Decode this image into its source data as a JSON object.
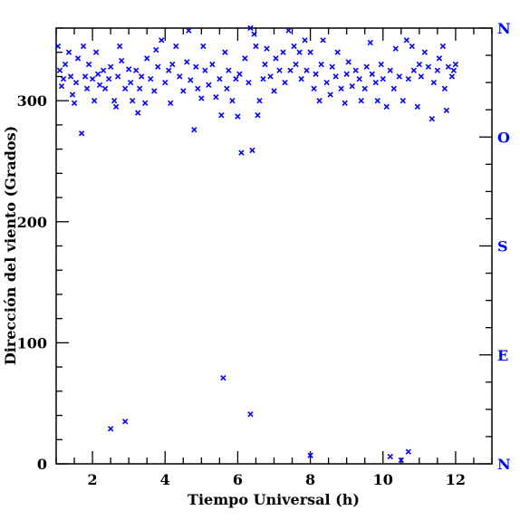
{
  "chart_data": {
    "type": "scatter",
    "xlabel": "Tiempo Universal (h)",
    "ylabel": "Dirección del viento (Grados)",
    "xlim": [
      1,
      13
    ],
    "ylim": [
      0,
      360
    ],
    "x_ticks": [
      2,
      4,
      6,
      8,
      10,
      12
    ],
    "x_tick_labels": [
      "2",
      "4",
      "6",
      "8",
      "10",
      "12"
    ],
    "y_ticks": [
      0,
      100,
      200,
      300
    ],
    "y_tick_labels": [
      "0",
      "100",
      "200",
      "300"
    ],
    "right_axis_labels": [
      {
        "value": 0,
        "label": "N"
      },
      {
        "value": 90,
        "label": "E"
      },
      {
        "value": 180,
        "label": "S"
      },
      {
        "value": 270,
        "label": "O"
      },
      {
        "value": 360,
        "label": "N"
      }
    ],
    "marker": "x",
    "color": "#0000ff",
    "points": [
      [
        1.05,
        345
      ],
      [
        1.1,
        325
      ],
      [
        1.15,
        312
      ],
      [
        1.2,
        318
      ],
      [
        1.25,
        330
      ],
      [
        1.35,
        340
      ],
      [
        1.4,
        320
      ],
      [
        1.45,
        305
      ],
      [
        1.5,
        298
      ],
      [
        1.55,
        315
      ],
      [
        1.6,
        335
      ],
      [
        1.7,
        273
      ],
      [
        1.75,
        345
      ],
      [
        1.8,
        320
      ],
      [
        1.85,
        310
      ],
      [
        1.9,
        330
      ],
      [
        2.0,
        318
      ],
      [
        2.05,
        300
      ],
      [
        2.1,
        340
      ],
      [
        2.15,
        322
      ],
      [
        2.2,
        313
      ],
      [
        2.3,
        325
      ],
      [
        2.35,
        310
      ],
      [
        2.45,
        318
      ],
      [
        2.5,
        328
      ],
      [
        2.6,
        300
      ],
      [
        2.65,
        295
      ],
      [
        2.7,
        320
      ],
      [
        2.75,
        345
      ],
      [
        2.8,
        333
      ],
      [
        2.9,
        310
      ],
      [
        3.0,
        326
      ],
      [
        3.05,
        315
      ],
      [
        3.1,
        300
      ],
      [
        3.2,
        325
      ],
      [
        3.25,
        290
      ],
      [
        3.3,
        310
      ],
      [
        3.35,
        320
      ],
      [
        3.45,
        298
      ],
      [
        3.5,
        335
      ],
      [
        3.6,
        318
      ],
      [
        3.7,
        308
      ],
      [
        3.75,
        342
      ],
      [
        3.8,
        328
      ],
      [
        3.9,
        350
      ],
      [
        4.0,
        315
      ],
      [
        4.1,
        325
      ],
      [
        4.15,
        298
      ],
      [
        4.2,
        330
      ],
      [
        4.3,
        345
      ],
      [
        4.4,
        320
      ],
      [
        4.5,
        308
      ],
      [
        4.6,
        332
      ],
      [
        4.65,
        358
      ],
      [
        4.7,
        317
      ],
      [
        4.8,
        276
      ],
      [
        4.85,
        328
      ],
      [
        4.9,
        310
      ],
      [
        5.0,
        302
      ],
      [
        5.05,
        345
      ],
      [
        5.1,
        325
      ],
      [
        5.2,
        313
      ],
      [
        5.3,
        330
      ],
      [
        5.4,
        303
      ],
      [
        5.5,
        318
      ],
      [
        5.55,
        288
      ],
      [
        5.65,
        340
      ],
      [
        5.7,
        310
      ],
      [
        5.75,
        325
      ],
      [
        5.85,
        300
      ],
      [
        5.95,
        318
      ],
      [
        6.0,
        287
      ],
      [
        6.05,
        322
      ],
      [
        6.1,
        257
      ],
      [
        6.2,
        335
      ],
      [
        6.3,
        315
      ],
      [
        6.35,
        360
      ],
      [
        6.4,
        259
      ],
      [
        6.45,
        355
      ],
      [
        6.5,
        345
      ],
      [
        6.55,
        288
      ],
      [
        6.6,
        300
      ],
      [
        6.7,
        318
      ],
      [
        6.75,
        330
      ],
      [
        6.8,
        343
      ],
      [
        6.9,
        320
      ],
      [
        7.0,
        308
      ],
      [
        7.05,
        335
      ],
      [
        7.15,
        325
      ],
      [
        7.25,
        340
      ],
      [
        7.3,
        315
      ],
      [
        7.4,
        358
      ],
      [
        7.45,
        325
      ],
      [
        7.55,
        345
      ],
      [
        7.6,
        330
      ],
      [
        7.7,
        340
      ],
      [
        7.75,
        318
      ],
      [
        7.85,
        350
      ],
      [
        7.9,
        325
      ],
      [
        8.0,
        340
      ],
      [
        8.1,
        310
      ],
      [
        8.15,
        322
      ],
      [
        8.25,
        300
      ],
      [
        8.3,
        330
      ],
      [
        8.35,
        350
      ],
      [
        8.45,
        315
      ],
      [
        8.55,
        305
      ],
      [
        8.6,
        328
      ],
      [
        8.7,
        320
      ],
      [
        8.75,
        340
      ],
      [
        8.85,
        310
      ],
      [
        8.95,
        298
      ],
      [
        9.0,
        322
      ],
      [
        9.05,
        332
      ],
      [
        9.15,
        312
      ],
      [
        9.25,
        325
      ],
      [
        9.35,
        318
      ],
      [
        9.4,
        300
      ],
      [
        9.5,
        310
      ],
      [
        9.55,
        328
      ],
      [
        9.65,
        348
      ],
      [
        9.7,
        322
      ],
      [
        9.8,
        315
      ],
      [
        9.85,
        300
      ],
      [
        9.95,
        330
      ],
      [
        10.0,
        318
      ],
      [
        10.1,
        295
      ],
      [
        10.2,
        325
      ],
      [
        10.3,
        310
      ],
      [
        10.35,
        343
      ],
      [
        10.45,
        320
      ],
      [
        10.55,
        300
      ],
      [
        10.65,
        350
      ],
      [
        10.7,
        318
      ],
      [
        10.8,
        345
      ],
      [
        10.85,
        325
      ],
      [
        10.95,
        295
      ],
      [
        11.0,
        330
      ],
      [
        11.05,
        320
      ],
      [
        11.15,
        340
      ],
      [
        11.25,
        328
      ],
      [
        11.35,
        285
      ],
      [
        11.4,
        315
      ],
      [
        11.5,
        325
      ],
      [
        11.55,
        335
      ],
      [
        11.65,
        345
      ],
      [
        11.7,
        310
      ],
      [
        11.75,
        292
      ],
      [
        11.8,
        328
      ],
      [
        11.9,
        320
      ],
      [
        11.95,
        325
      ],
      [
        12.0,
        330
      ],
      [
        2.5,
        29
      ],
      [
        2.9,
        35
      ],
      [
        5.6,
        71
      ],
      [
        6.35,
        41
      ],
      [
        8.0,
        7
      ],
      [
        10.2,
        6
      ],
      [
        10.5,
        3
      ],
      [
        10.7,
        10
      ]
    ]
  }
}
